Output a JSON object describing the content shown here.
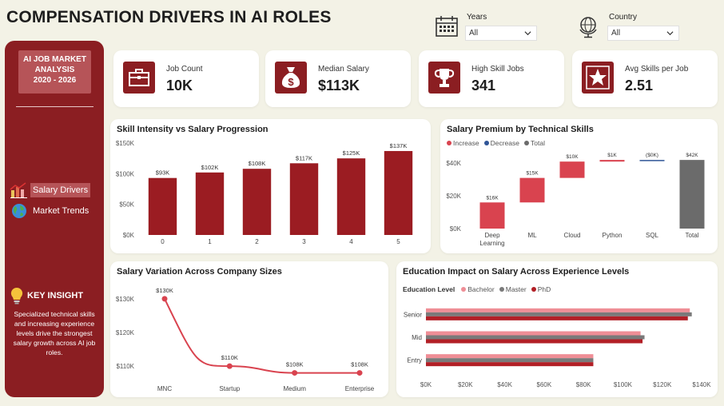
{
  "title": "COMPENSATION DRIVERS IN AI ROLES",
  "filters": {
    "years": {
      "label": "Years",
      "value": "All"
    },
    "country": {
      "label": "Country",
      "value": "All"
    }
  },
  "sidebar": {
    "brand": [
      "AI JOB MARKET",
      "ANALYSIS",
      "2020 - 2026"
    ],
    "nav": [
      {
        "label": "Salary Drivers",
        "icon": "bar-chart-icon",
        "active": true
      },
      {
        "label": "Market Trends",
        "icon": "globe-icon",
        "active": false
      }
    ],
    "insight_title": "KEY INSIGHT",
    "insight_text": "Specialized technical skills and increasing experience levels drive the strongest salary growth across AI job roles."
  },
  "kpis": [
    {
      "label": "Job Count",
      "value": "10K",
      "icon": "briefcase-icon"
    },
    {
      "label": "Median Salary",
      "value": "$113K",
      "icon": "money-bag-icon"
    },
    {
      "label": "High Skill Jobs",
      "value": "341",
      "icon": "trophy-icon"
    },
    {
      "label": "Avg Skills per Job",
      "value": "2.51",
      "icon": "star-icon"
    }
  ],
  "colors": {
    "accent": "#8b1e22",
    "bar": "#9b1c22",
    "increase": "#d9434f",
    "decrease": "#2f5597",
    "total": "#6b6b6b",
    "bachelor": "#ef8e96",
    "master": "#7a7a7a",
    "phd": "#b21f26"
  },
  "chart_data": [
    {
      "type": "bar",
      "title": "Skill Intensity vs Salary Progression",
      "categories": [
        "0",
        "1",
        "2",
        "3",
        "4",
        "5"
      ],
      "values": [
        93,
        102,
        108,
        117,
        125,
        137
      ],
      "data_labels": [
        "$93K",
        "$102K",
        "$108K",
        "$117K",
        "$125K",
        "$137K"
      ],
      "yticks": [
        "$0K",
        "$50K",
        "$100K",
        "$150K"
      ],
      "ylim": [
        0,
        150
      ]
    },
    {
      "type": "waterfall",
      "title": "Salary Premium by Technical Skills",
      "legend": [
        "Increase",
        "Decrease",
        "Total"
      ],
      "categories": [
        "Deep Learning",
        "ML",
        "Cloud",
        "Python",
        "SQL",
        "Total"
      ],
      "values": [
        16,
        15,
        10,
        1,
        -0.3,
        42
      ],
      "data_labels": [
        "$16K",
        "$15K",
        "$10K",
        "$1K",
        "($0K)",
        "$42K"
      ],
      "yticks": [
        "$0K",
        "$20K",
        "$40K"
      ],
      "ylim": [
        0,
        45
      ]
    },
    {
      "type": "line",
      "title": "Salary Variation Across Company Sizes",
      "categories": [
        "MNC",
        "Startup",
        "Medium",
        "Enterprise"
      ],
      "values": [
        130,
        110,
        108,
        108
      ],
      "data_labels": [
        "$130K",
        "$110K",
        "$108K",
        "$108K"
      ],
      "yticks": [
        "$110K",
        "$120K",
        "$130K"
      ],
      "ylim": [
        106,
        134
      ]
    },
    {
      "type": "bar",
      "orientation": "horizontal",
      "title": "Education Impact on Salary Across Experience Levels",
      "legend_title": "Education Level",
      "categories": [
        "Senior",
        "Mid",
        "Entry"
      ],
      "series": [
        {
          "name": "Bachelor",
          "values": [
            134,
            109,
            85
          ]
        },
        {
          "name": "Master",
          "values": [
            135,
            111,
            85
          ]
        },
        {
          "name": "PhD",
          "values": [
            133,
            110,
            85
          ]
        }
      ],
      "xticks": [
        "$0K",
        "$20K",
        "$40K",
        "$60K",
        "$80K",
        "$100K",
        "$120K",
        "$140K"
      ],
      "xlim": [
        0,
        140
      ]
    }
  ]
}
